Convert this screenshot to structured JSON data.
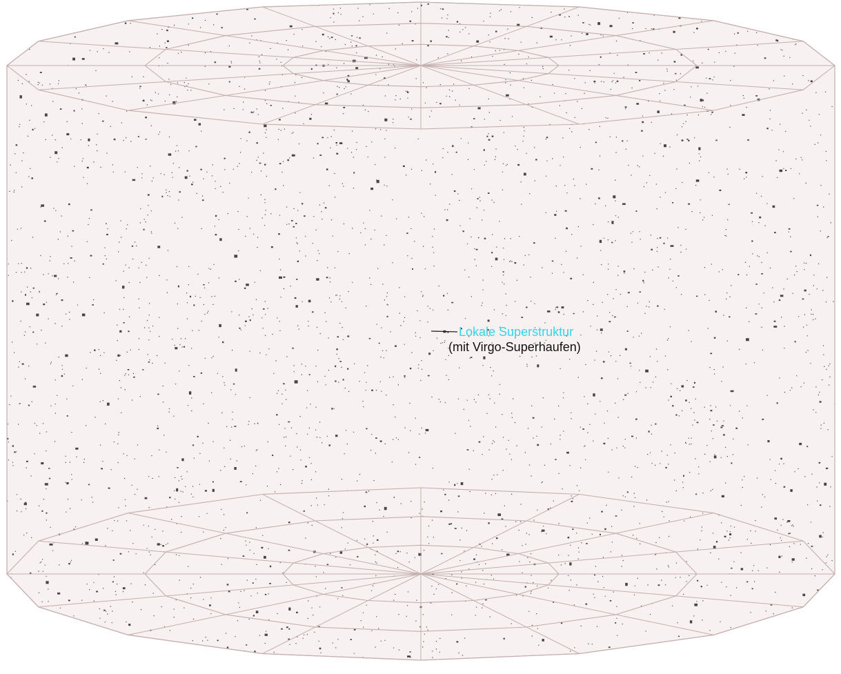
{
  "annotation": {
    "title": "Lokale Superstruktur",
    "subtitle": "(mit Virgo-Superhaufen)"
  },
  "colors": {
    "background": "#ffffff",
    "cylinder_fill": "#f8f1f1",
    "grid_lines": "#c4aeae",
    "galaxy_dots": "#141414",
    "title_color": "#33d6e6",
    "subtitle_color": "#111111",
    "leader_line": "#222222"
  },
  "grid": {
    "radial_spokes": 16,
    "concentric_rings": 3
  }
}
